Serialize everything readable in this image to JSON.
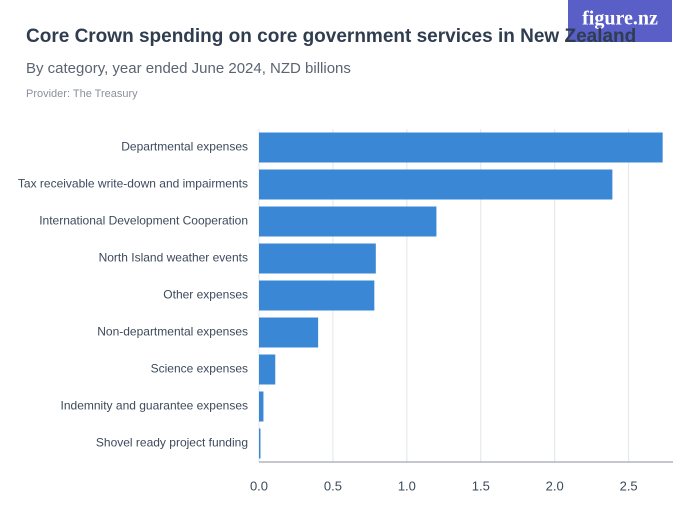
{
  "logo": "figure.nz",
  "chart_data": {
    "type": "hbar",
    "title": "Core Crown spending on core government services in New Zealand",
    "subtitle": "By category, year ended June 2024, NZD billions",
    "provider": "Provider: The Treasury",
    "categories": [
      "Departmental expenses",
      "Tax receivable write-down and impairments",
      "International Development Cooperation",
      "North Island weather events",
      "Other expenses",
      "Non-departmental expenses",
      "Science expenses",
      "Indemnity and guarantee expenses",
      "Shovel ready project funding"
    ],
    "values": [
      2.73,
      2.39,
      1.2,
      0.79,
      0.78,
      0.4,
      0.11,
      0.03,
      0.01
    ],
    "color": "#3a87d6",
    "xlim": [
      0,
      2.8
    ],
    "xticks": [
      {
        "value": 0,
        "label": "0.0"
      },
      0.5,
      {
        "value": 1,
        "label": "1.0"
      },
      1.5,
      {
        "value": 2,
        "label": "2.0"
      },
      2.5
    ],
    "grid": true
  }
}
